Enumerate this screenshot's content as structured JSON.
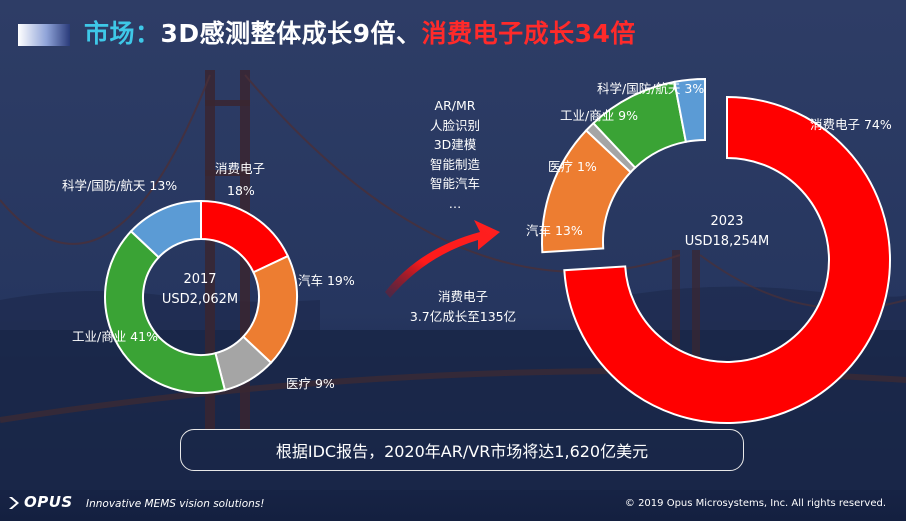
{
  "title": {
    "part1": "市场：",
    "part2": "3D感测整体成长9倍、",
    "part3": "消费电子成长34倍"
  },
  "colors": {
    "consumer": "#ff0000",
    "auto": "#ed7d31",
    "medical": "#a5a5a5",
    "industrial": "#3aa335",
    "science": "#5b9bd5"
  },
  "chart_data": [
    {
      "type": "pie",
      "center_label": [
        "2017",
        "USD2,062M"
      ],
      "categories": [
        "消费电子",
        "汽车",
        "医疗",
        "工业/商业",
        "科学/国防/航天"
      ],
      "values": [
        18,
        19,
        9,
        41,
        13
      ],
      "labels": [
        "消费电子\n18%",
        "汽车 19%",
        "医疗 9%",
        "工业/商业 41%",
        "科学/国防/航天 13%"
      ]
    },
    {
      "type": "pie",
      "center_label": [
        "2023",
        "USD18,254M"
      ],
      "categories": [
        "消费电子",
        "汽车",
        "医疗",
        "工业/商业",
        "科学/国防/航天"
      ],
      "values": [
        74,
        13,
        1,
        9,
        3
      ],
      "labels": [
        "消费电子 74%",
        "汽车 13%",
        "医疗 1%",
        "工业/商业 9%",
        "科学/国防/航天 3%"
      ]
    }
  ],
  "applications": [
    "AR/MR",
    "人脸识别",
    "3D建模",
    "智能制造",
    "智能汽车",
    "…"
  ],
  "growth_note": [
    "消费电子",
    "3.7亿成长至135亿"
  ],
  "banner": "根据IDC报告，2020年AR/VR市场将达1,620亿美元",
  "footer": {
    "logo": "OPUS",
    "tagline": "Innovative MEMS vision solutions!",
    "copyright": "© 2019 Opus Microsystems, Inc. All rights reserved."
  }
}
